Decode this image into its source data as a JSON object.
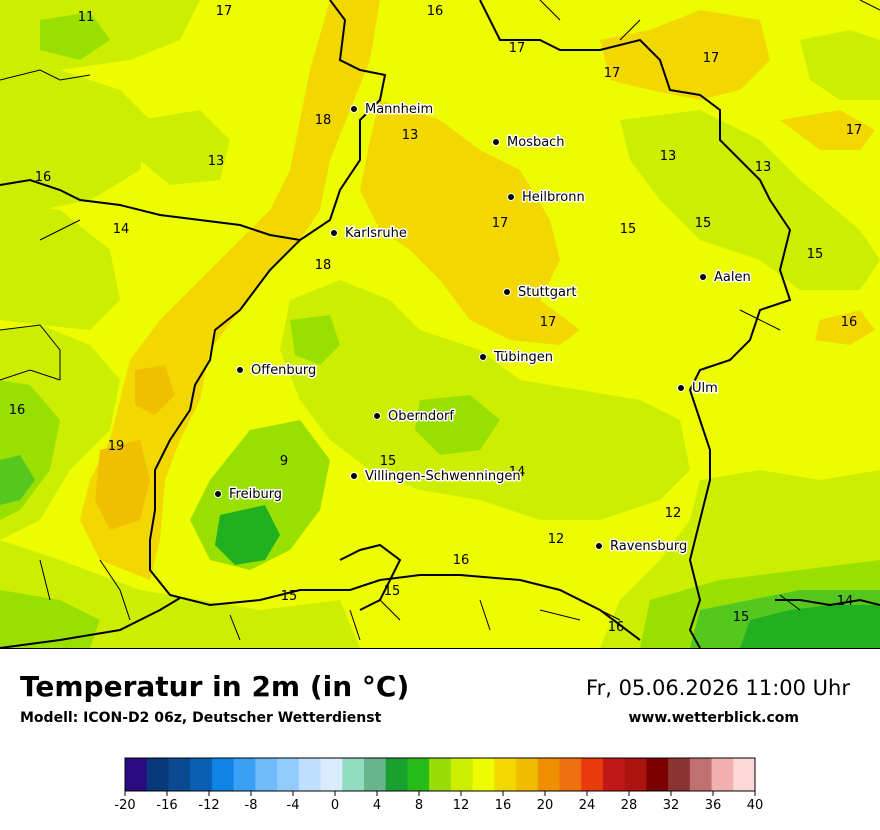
{
  "title": "Temperatur in 2m (in °C)",
  "model": "Modell: ICON-D2 06z, Deutscher Wetterdienst",
  "datetime": "Fr, 05.06.2026 11:00 Uhr",
  "website": "www.wetterblick.com",
  "colors": {
    "base": "#eefc00",
    "warm": "#f2d800",
    "warmer": "#f0c000",
    "hot": "#f0b010",
    "mild": "#ccee00",
    "cool": "#99e000",
    "cooler": "#55c820",
    "cold": "#20b020"
  },
  "cities": [
    {
      "name": "Mannheim",
      "id": "mannheim"
    },
    {
      "name": "Mosbach",
      "id": "mosbach"
    },
    {
      "name": "Heilbronn",
      "id": "heilbronn"
    },
    {
      "name": "Karlsruhe",
      "id": "karlsruhe"
    },
    {
      "name": "Stuttgart",
      "id": "stuttgart"
    },
    {
      "name": "Aalen",
      "id": "aalen"
    },
    {
      "name": "Tübingen",
      "id": "tuebingen"
    },
    {
      "name": "Offenburg",
      "id": "offenburg"
    },
    {
      "name": "Ulm",
      "id": "ulm"
    },
    {
      "name": "Oberndorf",
      "id": "oberndorf"
    },
    {
      "name": "Villingen-Schwenningen",
      "id": "villingen"
    },
    {
      "name": "Freiburg",
      "id": "freiburg"
    },
    {
      "name": "Ravensburg",
      "id": "ravensburg"
    }
  ],
  "temperature_labels": [
    "11",
    "17",
    "16",
    "17",
    "17",
    "18",
    "13",
    "17",
    "13",
    "13",
    "16",
    "13",
    "14",
    "17",
    "15",
    "15",
    "15",
    "18",
    "17",
    "16",
    "17",
    "16",
    "19",
    "9",
    "15",
    "14",
    "12",
    "12",
    "16",
    "15",
    "15",
    "15",
    "16",
    "14"
  ],
  "colorbar": {
    "ticks": [
      "-20",
      "-16",
      "-12",
      "-8",
      "-4",
      "0",
      "4",
      "8",
      "12",
      "16",
      "20",
      "24",
      "28",
      "32",
      "36",
      "40"
    ],
    "colors": [
      "#2a0a80",
      "#08387c",
      "#0a4a90",
      "#0a5fb4",
      "#1084e6",
      "#3aa0f4",
      "#6ebcfa",
      "#92ccfc",
      "#bee0fe",
      "#d8ecfe",
      "#92dcc2",
      "#68b48c",
      "#18a030",
      "#28bc18",
      "#98dc08",
      "#ccee00",
      "#eefc00",
      "#f2d800",
      "#f0bc00",
      "#f09000",
      "#f07010",
      "#e83a0a",
      "#c01818",
      "#ac1410",
      "#7c0000",
      "#8c3434",
      "#c07070",
      "#f2b0b0",
      "#fcd8d8"
    ]
  }
}
